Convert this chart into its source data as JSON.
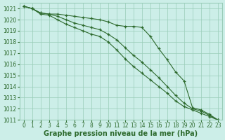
{
  "xlabel": "Graphe pression niveau de la mer (hPa)",
  "x": [
    0,
    1,
    2,
    3,
    4,
    5,
    6,
    7,
    8,
    9,
    10,
    11,
    12,
    13,
    14,
    15,
    16,
    17,
    18,
    19,
    20,
    21,
    22,
    23
  ],
  "line1": [
    1021.2,
    1021.0,
    1020.6,
    1020.5,
    1020.5,
    1020.4,
    1020.3,
    1020.2,
    1020.1,
    1020.0,
    1019.8,
    1019.5,
    1019.4,
    1019.4,
    1019.3,
    1018.5,
    1017.4,
    1016.4,
    1015.3,
    1014.5,
    1012.1,
    1011.9,
    1011.5,
    1011.0
  ],
  "line2": [
    1021.2,
    1021.0,
    1020.6,
    1020.5,
    1020.3,
    1020.0,
    1019.7,
    1019.5,
    1019.3,
    1019.1,
    1018.7,
    1018.2,
    1017.5,
    1016.8,
    1016.2,
    1015.5,
    1014.8,
    1014.0,
    1013.2,
    1012.5,
    1012.0,
    1011.8,
    1011.4,
    1011.0
  ],
  "line3": [
    1021.2,
    1021.0,
    1020.5,
    1020.4,
    1020.0,
    1019.6,
    1019.3,
    1019.0,
    1018.7,
    1018.5,
    1018.0,
    1017.3,
    1016.5,
    1015.8,
    1015.2,
    1014.6,
    1014.0,
    1013.4,
    1012.7,
    1012.2,
    1011.9,
    1011.6,
    1011.3,
    1011.0
  ],
  "line_color": "#2d6a2d",
  "bg_color": "#cceee8",
  "grid_color": "#99ccb8",
  "ylim_min": 1011,
  "ylim_max": 1021.5,
  "yticks": [
    1011,
    1012,
    1013,
    1014,
    1015,
    1016,
    1017,
    1018,
    1019,
    1020,
    1021
  ],
  "tick_fontsize": 5.5,
  "label_fontsize": 7
}
